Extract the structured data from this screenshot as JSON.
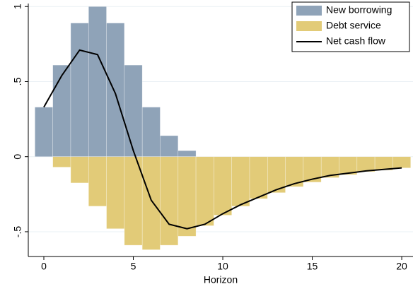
{
  "chart_data": {
    "type": "bar",
    "x_label": "Horizon",
    "x": [
      0,
      1,
      2,
      3,
      4,
      5,
      6,
      7,
      8,
      9,
      10,
      11,
      12,
      13,
      14,
      15,
      16,
      17,
      18,
      19,
      20
    ],
    "series": [
      {
        "name": "New borrowing",
        "type": "bar",
        "color": "#8fa3b8",
        "values": [
          0.33,
          0.61,
          0.89,
          1.0,
          0.89,
          0.61,
          0.33,
          0.14,
          0.04,
          null,
          null,
          null,
          null,
          null,
          null,
          null,
          null,
          null,
          null,
          null,
          null
        ]
      },
      {
        "name": "Debt service",
        "type": "bar",
        "color": "#e2cb78",
        "values": [
          null,
          -0.07,
          -0.175,
          -0.33,
          -0.48,
          -0.59,
          -0.62,
          -0.59,
          -0.53,
          -0.46,
          -0.39,
          -0.33,
          -0.28,
          -0.24,
          -0.2,
          -0.17,
          -0.14,
          -0.12,
          -0.1,
          -0.09,
          -0.075
        ]
      },
      {
        "name": "Net cash flow",
        "type": "line",
        "color": "#000000",
        "values": [
          0.33,
          0.54,
          0.71,
          0.68,
          0.42,
          0.04,
          -0.29,
          -0.45,
          -0.48,
          -0.45,
          -0.38,
          -0.32,
          -0.27,
          -0.22,
          -0.18,
          -0.15,
          -0.125,
          -0.11,
          -0.095,
          -0.085,
          -0.075
        ]
      }
    ],
    "xlim": [
      -0.87,
      20.63
    ],
    "xticks": [
      0,
      5,
      10,
      15,
      20
    ],
    "ylim": [
      -0.665,
      1.02
    ],
    "yticks": [
      {
        "value": -0.5,
        "label": "-.5"
      },
      0,
      {
        "value": 0.5,
        "label": ".5"
      },
      1
    ],
    "grid": true,
    "legend": "top-right"
  }
}
